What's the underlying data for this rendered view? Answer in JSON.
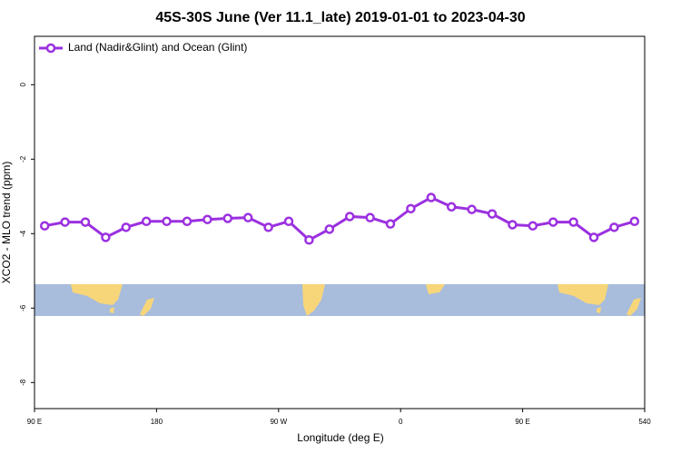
{
  "chart_data": {
    "type": "line",
    "title": "45S-30S June (Ver 11.1_late)   2019-01-01 to 2023-04-30",
    "x_label": "Longitude (deg E)",
    "y_label": "XCO2 - MLO trend (ppm)",
    "x": [
      97.5,
      112.5,
      127.5,
      142.5,
      157.5,
      172.5,
      187.5,
      202.5,
      217.5,
      232.5,
      247.5,
      262.5,
      277.5,
      292.5,
      307.5,
      322.5,
      337.5,
      352.5,
      367.5,
      382.5,
      397.5,
      412.5,
      427.5,
      442.5,
      457.5,
      472.5,
      487.5,
      502.5,
      517.5,
      532.5
    ],
    "series": [
      {
        "name": "Land (Nadir&Glint) and Ocean (Glint)",
        "color": "#9b30e0",
        "values": [
          -3.79,
          -3.69,
          -3.69,
          -4.1,
          -3.83,
          -3.67,
          -3.67,
          -3.67,
          -3.62,
          -3.59,
          -3.57,
          -3.83,
          -3.67,
          -4.17,
          -3.88,
          -3.54,
          -3.57,
          -3.74,
          -3.33,
          -3.03,
          -3.28,
          -3.35,
          -3.47,
          -3.76,
          -3.79,
          -3.69,
          -3.69,
          -4.1,
          -3.83,
          -3.67
        ]
      }
    ],
    "xlim": [
      90,
      540
    ],
    "xticks": [
      {
        "value": 90,
        "label": "90 E"
      },
      180,
      {
        "value": 270,
        "label": "90 W"
      },
      {
        "value": 360,
        "label": "0"
      },
      {
        "value": 450,
        "label": "90 E"
      },
      540
    ],
    "ylim": [
      -8.7,
      1.3
    ],
    "yticks": [
      0,
      -2,
      -4,
      -6,
      -8
    ],
    "legend": "top-left"
  }
}
